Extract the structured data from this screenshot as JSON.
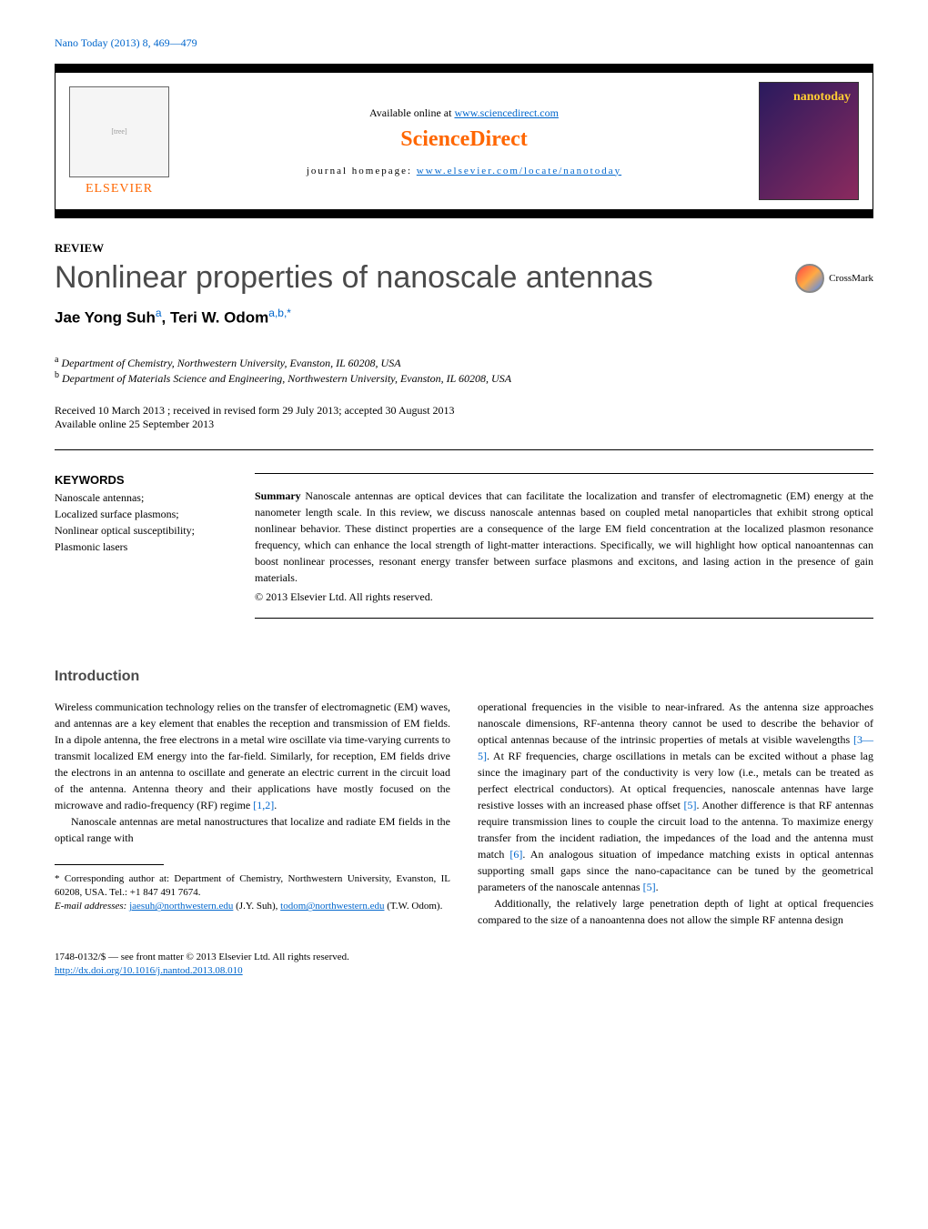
{
  "journal_ref": "Nano Today (2013) 8, 469—479",
  "banner": {
    "elsevier": "ELSEVIER",
    "available_prefix": "Available online at ",
    "available_url": "www.sciencedirect.com",
    "sciencedirect": "ScienceDirect",
    "homepage_prefix": "journal homepage: ",
    "homepage_url": "www.elsevier.com/locate/nanotoday",
    "cover_title": "nanotoday"
  },
  "review_label": "REVIEW",
  "title": "Nonlinear properties of nanoscale antennas",
  "crossmark": "CrossMark",
  "authors_html": "Jae Yong Suh",
  "author1": "Jae Yong Suh",
  "author1_sup": "a",
  "author2": ", Teri W. Odom",
  "author2_sup": "a,b,",
  "author2_star": "*",
  "affiliations": {
    "a_sup": "a",
    "a": " Department of Chemistry, Northwestern University, Evanston, IL 60208, USA",
    "b_sup": "b",
    "b": " Department of Materials Science and Engineering, Northwestern University, Evanston, IL 60208, USA"
  },
  "dates": {
    "line1": "Received 10 March 2013 ; received in revised form 29 July 2013; accepted 30 August 2013",
    "line2": "Available online 25 September 2013"
  },
  "keywords": {
    "heading": "KEYWORDS",
    "items": "Nanoscale antennas;\nLocalized surface plasmons;\nNonlinear optical susceptibility;\nPlasmonic lasers"
  },
  "summary": {
    "label": "Summary",
    "text": "     Nanoscale antennas are optical devices that can facilitate the localization and transfer of electromagnetic (EM) energy at the nanometer length scale. In this review, we discuss nanoscale antennas based on coupled metal nanoparticles that exhibit strong optical nonlinear behavior. These distinct properties are a consequence of the large EM field concentration at the localized plasmon resonance frequency, which can enhance the local strength of light-matter interactions. Specifically, we will highlight how optical nanoantennas can boost nonlinear processes, resonant energy transfer between surface plasmons and excitons, and lasing action in the presence of gain materials.",
    "copyright": "© 2013 Elsevier Ltd. All rights reserved."
  },
  "intro": {
    "heading": "Introduction",
    "p1a": "Wireless communication technology relies on the transfer of electromagnetic (EM) waves, and antennas are a key element that enables the reception and transmission of EM fields. In a dipole antenna, the free electrons in a metal wire oscillate via time-varying currents to transmit localized EM energy into the far-field. Similarly, for reception, EM fields drive the electrons in an antenna to oscillate and generate an electric current in the circuit load of the antenna. Antenna theory and their applications have mostly focused on the microwave and radio-frequency (RF) regime ",
    "p1_ref": "[1,2]",
    "p1b": ".",
    "p2": "Nanoscale antennas are metal nanostructures that localize and radiate EM fields in the optical range with ",
    "p3a": "operational frequencies in the visible to near-infrared. As the antenna size approaches nanoscale dimensions, RF-antenna theory cannot be used to describe the behavior of optical antennas because of the intrinsic properties of metals at visible wavelengths ",
    "p3_ref1": "[3—5]",
    "p3b": ". At RF frequencies, charge oscillations in metals can be excited without a phase lag since the imaginary part of the conductivity is very low (i.e., metals can be treated as perfect electrical conductors). At optical frequencies, nanoscale antennas have large resistive losses with an increased phase offset ",
    "p3_ref2": "[5]",
    "p3c": ". Another difference is that RF antennas require transmission lines to couple the circuit load to the antenna. To maximize energy transfer from the incident radiation, the impedances of the load and the antenna must match ",
    "p3_ref3": "[6]",
    "p3d": ". An analogous situation of impedance matching exists in optical antennas supporting small gaps since the nano-capacitance can be tuned by the geometrical parameters of the nanoscale antennas ",
    "p3_ref4": "[5]",
    "p3e": ".",
    "p4": "Additionally, the relatively large penetration depth of light at optical frequencies compared to the size of a nanoantenna does not allow the simple RF antenna design"
  },
  "footnotes": {
    "corr": "* Corresponding author at: Department of Chemistry, Northwestern University, Evanston, IL 60208, USA. Tel.: +1 847 491 7674.",
    "email_label": "E-mail addresses: ",
    "email1": "jaesuh@northwestern.edu",
    "email1_name": " (J.Y. Suh), ",
    "email2": "todom@northwestern.edu",
    "email2_name": " (T.W. Odom)."
  },
  "footer": {
    "issn": "1748-0132/$ — see front matter © 2013 Elsevier Ltd. All rights reserved.",
    "doi": "http://dx.doi.org/10.1016/j.nantod.2013.08.010"
  },
  "colors": {
    "link": "#0066cc",
    "orange": "#ff6600",
    "title_gray": "#4a4a4a"
  }
}
